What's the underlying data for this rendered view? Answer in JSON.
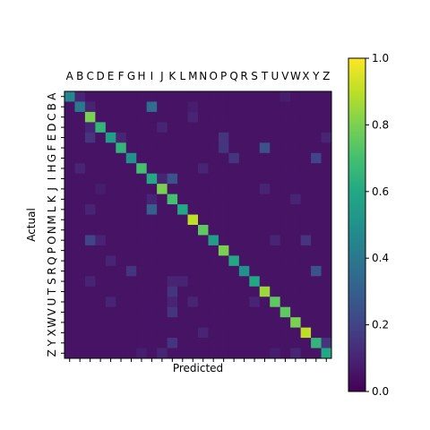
{
  "chart_data": {
    "type": "heatmap",
    "title": "",
    "xlabel": "Predicted",
    "ylabel": "Actual",
    "x_categories": [
      "A",
      "B",
      "C",
      "D",
      "E",
      "F",
      "G",
      "H",
      "I",
      "J",
      "K",
      "L",
      "M",
      "N",
      "O",
      "P",
      "Q",
      "R",
      "S",
      "T",
      "U",
      "V",
      "W",
      "X",
      "Y",
      "Z"
    ],
    "y_categories": [
      "A",
      "B",
      "C",
      "D",
      "E",
      "F",
      "G",
      "H",
      "I",
      "J",
      "K",
      "L",
      "M",
      "N",
      "O",
      "P",
      "Q",
      "R",
      "S",
      "T",
      "U",
      "V",
      "W",
      "X",
      "Y",
      "Z"
    ],
    "x_tick_position": "top",
    "colormap": "viridis",
    "colorbar": {
      "min": 0.0,
      "max": 1.0,
      "ticks": [
        "0.0",
        "0.2",
        "0.4",
        "0.6",
        "0.8",
        "1.0"
      ]
    },
    "values": [
      [
        0.45,
        0.1,
        0.05,
        0.05,
        0.05,
        0.05,
        0.05,
        0.05,
        0.05,
        0.05,
        0.05,
        0.05,
        0.05,
        0.05,
        0.05,
        0.05,
        0.05,
        0.05,
        0.05,
        0.05,
        0.05,
        0.08,
        0.05,
        0.05,
        0.05,
        0.05
      ],
      [
        0.05,
        0.4,
        0.1,
        0.05,
        0.05,
        0.05,
        0.05,
        0.05,
        0.35,
        0.05,
        0.05,
        0.05,
        0.08,
        0.05,
        0.05,
        0.05,
        0.05,
        0.05,
        0.05,
        0.05,
        0.05,
        0.05,
        0.05,
        0.05,
        0.05,
        0.05
      ],
      [
        0.05,
        0.05,
        0.8,
        0.05,
        0.05,
        0.05,
        0.05,
        0.05,
        0.05,
        0.05,
        0.05,
        0.05,
        0.1,
        0.05,
        0.05,
        0.05,
        0.05,
        0.05,
        0.05,
        0.05,
        0.05,
        0.05,
        0.05,
        0.05,
        0.05,
        0.05
      ],
      [
        0.05,
        0.05,
        0.1,
        0.65,
        0.05,
        0.05,
        0.05,
        0.05,
        0.05,
        0.1,
        0.05,
        0.05,
        0.05,
        0.05,
        0.05,
        0.05,
        0.05,
        0.05,
        0.05,
        0.05,
        0.05,
        0.05,
        0.05,
        0.05,
        0.05,
        0.05
      ],
      [
        0.05,
        0.05,
        0.15,
        0.05,
        0.55,
        0.1,
        0.05,
        0.05,
        0.05,
        0.05,
        0.05,
        0.05,
        0.05,
        0.05,
        0.05,
        0.15,
        0.05,
        0.05,
        0.05,
        0.05,
        0.05,
        0.05,
        0.05,
        0.05,
        0.05,
        0.1
      ],
      [
        0.05,
        0.05,
        0.05,
        0.05,
        0.05,
        0.65,
        0.05,
        0.05,
        0.05,
        0.05,
        0.05,
        0.05,
        0.05,
        0.05,
        0.05,
        0.15,
        0.05,
        0.05,
        0.05,
        0.25,
        0.05,
        0.05,
        0.05,
        0.05,
        0.05,
        0.05
      ],
      [
        0.05,
        0.05,
        0.05,
        0.05,
        0.05,
        0.05,
        0.5,
        0.05,
        0.05,
        0.05,
        0.05,
        0.05,
        0.05,
        0.05,
        0.05,
        0.05,
        0.15,
        0.05,
        0.05,
        0.05,
        0.05,
        0.05,
        0.05,
        0.05,
        0.2,
        0.05
      ],
      [
        0.05,
        0.1,
        0.05,
        0.05,
        0.05,
        0.05,
        0.05,
        0.7,
        0.05,
        0.05,
        0.05,
        0.05,
        0.05,
        0.1,
        0.05,
        0.05,
        0.05,
        0.05,
        0.05,
        0.05,
        0.05,
        0.05,
        0.05,
        0.05,
        0.05,
        0.05
      ],
      [
        0.05,
        0.05,
        0.05,
        0.05,
        0.05,
        0.05,
        0.05,
        0.05,
        0.6,
        0.1,
        0.25,
        0.05,
        0.05,
        0.05,
        0.05,
        0.05,
        0.05,
        0.05,
        0.05,
        0.05,
        0.05,
        0.05,
        0.05,
        0.05,
        0.05,
        0.05
      ],
      [
        0.05,
        0.05,
        0.05,
        0.08,
        0.05,
        0.05,
        0.05,
        0.05,
        0.05,
        0.8,
        0.05,
        0.05,
        0.05,
        0.05,
        0.05,
        0.05,
        0.05,
        0.05,
        0.05,
        0.1,
        0.05,
        0.05,
        0.05,
        0.05,
        0.05,
        0.05
      ],
      [
        0.05,
        0.05,
        0.05,
        0.05,
        0.05,
        0.05,
        0.05,
        0.05,
        0.1,
        0.05,
        0.7,
        0.05,
        0.05,
        0.05,
        0.05,
        0.05,
        0.05,
        0.05,
        0.05,
        0.05,
        0.05,
        0.05,
        0.1,
        0.05,
        0.05,
        0.05
      ],
      [
        0.05,
        0.05,
        0.1,
        0.05,
        0.05,
        0.05,
        0.05,
        0.05,
        0.3,
        0.05,
        0.05,
        0.6,
        0.05,
        0.05,
        0.05,
        0.05,
        0.05,
        0.05,
        0.05,
        0.05,
        0.05,
        0.05,
        0.05,
        0.05,
        0.05,
        0.05
      ],
      [
        0.05,
        0.05,
        0.05,
        0.05,
        0.05,
        0.05,
        0.05,
        0.05,
        0.05,
        0.05,
        0.05,
        0.05,
        0.9,
        0.05,
        0.05,
        0.05,
        0.05,
        0.05,
        0.05,
        0.05,
        0.05,
        0.05,
        0.05,
        0.05,
        0.05,
        0.05
      ],
      [
        0.05,
        0.05,
        0.05,
        0.05,
        0.05,
        0.05,
        0.05,
        0.05,
        0.05,
        0.05,
        0.05,
        0.05,
        0.05,
        0.75,
        0.05,
        0.05,
        0.05,
        0.05,
        0.05,
        0.05,
        0.05,
        0.05,
        0.05,
        0.05,
        0.05,
        0.05
      ],
      [
        0.05,
        0.05,
        0.2,
        0.1,
        0.05,
        0.05,
        0.05,
        0.05,
        0.05,
        0.05,
        0.05,
        0.05,
        0.05,
        0.05,
        0.55,
        0.05,
        0.05,
        0.05,
        0.05,
        0.05,
        0.1,
        0.05,
        0.05,
        0.15,
        0.05,
        0.05
      ],
      [
        0.05,
        0.05,
        0.05,
        0.05,
        0.05,
        0.05,
        0.05,
        0.05,
        0.05,
        0.05,
        0.05,
        0.05,
        0.05,
        0.05,
        0.05,
        0.8,
        0.05,
        0.05,
        0.05,
        0.05,
        0.05,
        0.05,
        0.05,
        0.05,
        0.05,
        0.05
      ],
      [
        0.05,
        0.05,
        0.05,
        0.05,
        0.1,
        0.05,
        0.05,
        0.05,
        0.05,
        0.05,
        0.05,
        0.05,
        0.05,
        0.05,
        0.05,
        0.05,
        0.6,
        0.05,
        0.05,
        0.05,
        0.05,
        0.05,
        0.05,
        0.05,
        0.05,
        0.05
      ],
      [
        0.05,
        0.05,
        0.05,
        0.05,
        0.05,
        0.05,
        0.15,
        0.05,
        0.05,
        0.05,
        0.05,
        0.05,
        0.05,
        0.05,
        0.05,
        0.05,
        0.05,
        0.5,
        0.05,
        0.05,
        0.05,
        0.05,
        0.05,
        0.05,
        0.25,
        0.05
      ],
      [
        0.05,
        0.05,
        0.1,
        0.05,
        0.05,
        0.05,
        0.05,
        0.05,
        0.05,
        0.05,
        0.1,
        0.1,
        0.05,
        0.05,
        0.05,
        0.05,
        0.05,
        0.05,
        0.6,
        0.05,
        0.05,
        0.05,
        0.05,
        0.05,
        0.05,
        0.05
      ],
      [
        0.05,
        0.05,
        0.05,
        0.05,
        0.05,
        0.05,
        0.05,
        0.05,
        0.05,
        0.05,
        0.15,
        0.05,
        0.05,
        0.05,
        0.05,
        0.05,
        0.05,
        0.05,
        0.05,
        0.85,
        0.05,
        0.05,
        0.05,
        0.05,
        0.05,
        0.05
      ],
      [
        0.05,
        0.05,
        0.05,
        0.05,
        0.1,
        0.05,
        0.05,
        0.05,
        0.05,
        0.05,
        0.1,
        0.05,
        0.1,
        0.05,
        0.05,
        0.05,
        0.05,
        0.05,
        0.1,
        0.05,
        0.75,
        0.05,
        0.05,
        0.05,
        0.05,
        0.05
      ],
      [
        0.05,
        0.05,
        0.05,
        0.05,
        0.05,
        0.05,
        0.05,
        0.05,
        0.05,
        0.05,
        0.15,
        0.05,
        0.05,
        0.05,
        0.05,
        0.05,
        0.05,
        0.05,
        0.05,
        0.05,
        0.05,
        0.75,
        0.05,
        0.05,
        0.05,
        0.05
      ],
      [
        0.05,
        0.05,
        0.05,
        0.05,
        0.05,
        0.05,
        0.05,
        0.05,
        0.05,
        0.05,
        0.05,
        0.05,
        0.05,
        0.05,
        0.05,
        0.05,
        0.05,
        0.05,
        0.05,
        0.05,
        0.05,
        0.05,
        0.8,
        0.05,
        0.05,
        0.05
      ],
      [
        0.05,
        0.05,
        0.05,
        0.05,
        0.05,
        0.05,
        0.05,
        0.05,
        0.05,
        0.05,
        0.05,
        0.05,
        0.05,
        0.1,
        0.05,
        0.05,
        0.05,
        0.05,
        0.05,
        0.05,
        0.05,
        0.05,
        0.05,
        0.9,
        0.05,
        0.05
      ],
      [
        0.05,
        0.05,
        0.05,
        0.05,
        0.05,
        0.05,
        0.05,
        0.05,
        0.05,
        0.05,
        0.15,
        0.05,
        0.05,
        0.05,
        0.05,
        0.05,
        0.05,
        0.05,
        0.05,
        0.05,
        0.05,
        0.05,
        0.05,
        0.05,
        0.65,
        0.15
      ],
      [
        0.05,
        0.05,
        0.05,
        0.05,
        0.05,
        0.05,
        0.05,
        0.08,
        0.05,
        0.1,
        0.05,
        0.05,
        0.05,
        0.05,
        0.05,
        0.05,
        0.05,
        0.05,
        0.05,
        0.05,
        0.08,
        0.05,
        0.1,
        0.05,
        0.05,
        0.6
      ]
    ]
  }
}
